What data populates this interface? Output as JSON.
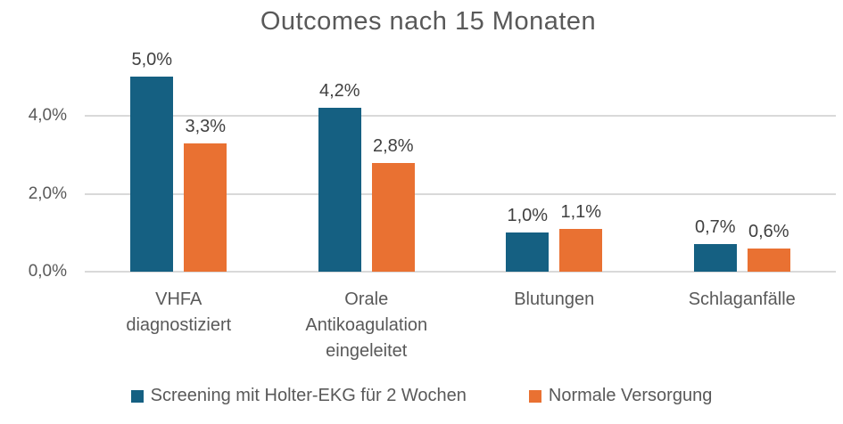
{
  "chart_data": {
    "type": "bar",
    "title": "Outcomes nach 15 Monaten",
    "categories": [
      "VHFA diagnostiziert",
      "Orale Antikoagulation eingeleitet",
      "Blutungen",
      "Schlaganfälle"
    ],
    "categories_wrapped": [
      [
        "VHFA",
        "diagnostiziert"
      ],
      [
        "Orale",
        "Antikoagulation",
        "eingeleitet"
      ],
      [
        "Blutungen"
      ],
      [
        "Schlaganfälle"
      ]
    ],
    "series": [
      {
        "name": "Screening mit Holter-EKG für 2 Wochen",
        "color": "#156082",
        "values": [
          5.0,
          4.2,
          1.0,
          0.7
        ],
        "labels": [
          "5,0%",
          "4,2%",
          "1,0%",
          "0,7%"
        ]
      },
      {
        "name": "Normale Versorgung",
        "color": "#E97132",
        "values": [
          3.3,
          2.8,
          1.1,
          0.6
        ],
        "labels": [
          "3,3%",
          "2,8%",
          "1,1%",
          "0,6%"
        ]
      }
    ],
    "y_axis": {
      "ticks": [
        0,
        2,
        4
      ],
      "tick_labels": [
        "0,0%",
        "2,0%",
        "4,0%"
      ],
      "min": 0,
      "max": 5.0,
      "unit": "%"
    },
    "xlabel": "",
    "ylabel": "",
    "grid": true,
    "legend_position": "bottom"
  },
  "colors": {
    "title_text": "#595959",
    "axis_text": "#595959",
    "data_label_text": "#404040",
    "gridline": "#D9D9D9",
    "background": "#FFFFFF"
  }
}
